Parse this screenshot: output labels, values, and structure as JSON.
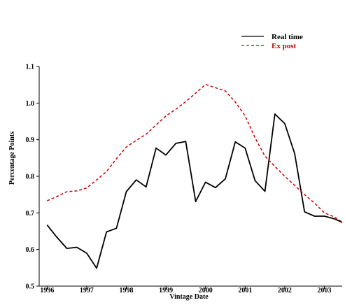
{
  "chart_data": {
    "type": "line",
    "title": "",
    "xlabel": "Vintage Date",
    "ylabel": "Percentage Points",
    "xlim": [
      1995.8,
      2003.45
    ],
    "ylim": [
      0.5,
      1.1
    ],
    "x_ticks": [
      1996,
      1997,
      1998,
      1999,
      2000,
      2001,
      2002,
      2003
    ],
    "x_tick_labels": [
      "1996",
      "1997",
      "1998",
      "1999",
      "2000",
      "2001",
      "2002",
      "2003"
    ],
    "y_ticks": [
      0.5,
      0.6,
      0.7,
      0.8,
      0.9,
      1.0,
      1.1
    ],
    "y_tick_labels": [
      "0.5",
      "0.6",
      "0.7",
      "0.8",
      "0.9",
      "1.0",
      "1.1"
    ],
    "grid": false,
    "legend_position": "top-right",
    "series": [
      {
        "name": "Real time",
        "color": "#000000",
        "style": "solid",
        "x": [
          1996.0,
          1996.25,
          1996.5,
          1996.75,
          1997.0,
          1997.25,
          1997.5,
          1997.75,
          1998.0,
          1998.25,
          1998.5,
          1998.75,
          1999.0,
          1999.25,
          1999.5,
          1999.75,
          2000.0,
          2000.25,
          2000.5,
          2000.75,
          2001.0,
          2001.25,
          2001.5,
          2001.75,
          2002.0,
          2002.25,
          2002.5,
          2002.75,
          2003.0,
          2003.25,
          2003.45
        ],
        "y": [
          0.667,
          0.633,
          0.603,
          0.606,
          0.59,
          0.549,
          0.648,
          0.658,
          0.758,
          0.79,
          0.771,
          0.877,
          0.858,
          0.89,
          0.895,
          0.731,
          0.784,
          0.769,
          0.793,
          0.894,
          0.877,
          0.788,
          0.759,
          0.97,
          0.944,
          0.862,
          0.703,
          0.691,
          0.691,
          0.684,
          0.674
        ]
      },
      {
        "name": "Ex post",
        "color": "#cc0000",
        "style": "dashed",
        "x": [
          1996.0,
          1996.25,
          1996.5,
          1996.75,
          1997.0,
          1997.25,
          1997.5,
          1997.75,
          1998.0,
          1998.25,
          1998.5,
          1998.75,
          1999.0,
          1999.25,
          1999.5,
          1999.75,
          2000.0,
          2000.25,
          2000.5,
          2000.75,
          2001.0,
          2001.25,
          2001.5,
          2001.75,
          2002.0,
          2002.25,
          2002.5,
          2002.75,
          2003.0,
          2003.25,
          2003.45
        ],
        "y": [
          0.733,
          0.745,
          0.758,
          0.76,
          0.768,
          0.79,
          0.813,
          0.848,
          0.88,
          0.898,
          0.915,
          0.94,
          0.965,
          0.983,
          1.004,
          1.027,
          1.051,
          1.042,
          1.033,
          1.003,
          0.965,
          0.905,
          0.855,
          0.827,
          0.8,
          0.775,
          0.75,
          0.727,
          0.7,
          0.689,
          0.675
        ]
      }
    ]
  }
}
